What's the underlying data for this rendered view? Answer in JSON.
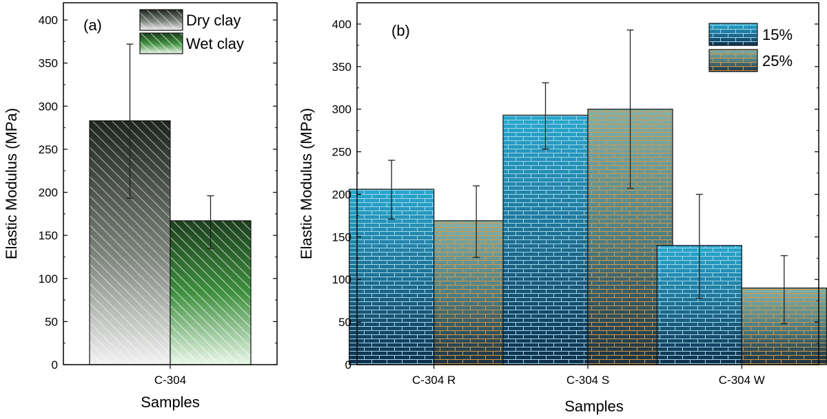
{
  "chart_data": [
    {
      "type": "bar",
      "panel": "(a)",
      "categories": [
        "C-304"
      ],
      "series": [
        {
          "name": "Dry clay",
          "values": [
            283
          ],
          "err_low": [
            193
          ],
          "err_high": [
            372
          ],
          "color": "#2e352e"
        },
        {
          "name": "Wet clay",
          "values": [
            167
          ],
          "err_low": [
            135
          ],
          "err_high": [
            196
          ],
          "color": "#2d6a2d"
        }
      ],
      "xlabel": "Samples",
      "ylabel": "Elastic Modulus (MPa)",
      "ylim": [
        0,
        420
      ],
      "yticks": [
        "0",
        "50",
        "100",
        "150",
        "200",
        "250",
        "300",
        "350",
        "400"
      ],
      "legend": "top-right",
      "grid": false
    },
    {
      "type": "bar",
      "panel": "(b)",
      "categories": [
        "C-304 R",
        "C-304 S",
        "C-304 W"
      ],
      "series": [
        {
          "name": "15%",
          "values": [
            206,
            293,
            140
          ],
          "err_low": [
            171,
            253,
            78
          ],
          "err_high": [
            240,
            331,
            200
          ],
          "color": "#2a8fb0"
        },
        {
          "name": "25%",
          "values": [
            169,
            300,
            90
          ],
          "err_low": [
            126,
            207,
            48
          ],
          "err_high": [
            210,
            393,
            128
          ],
          "color": "#6f9a8a"
        }
      ],
      "xlabel": "Samples",
      "ylabel": "Elastic Modulus (MPa)",
      "ylim": [
        0,
        425
      ],
      "yticks": [
        "0",
        "50",
        "100",
        "150",
        "200",
        "250",
        "300",
        "350",
        "400"
      ],
      "legend": "top-right",
      "grid": false
    }
  ]
}
